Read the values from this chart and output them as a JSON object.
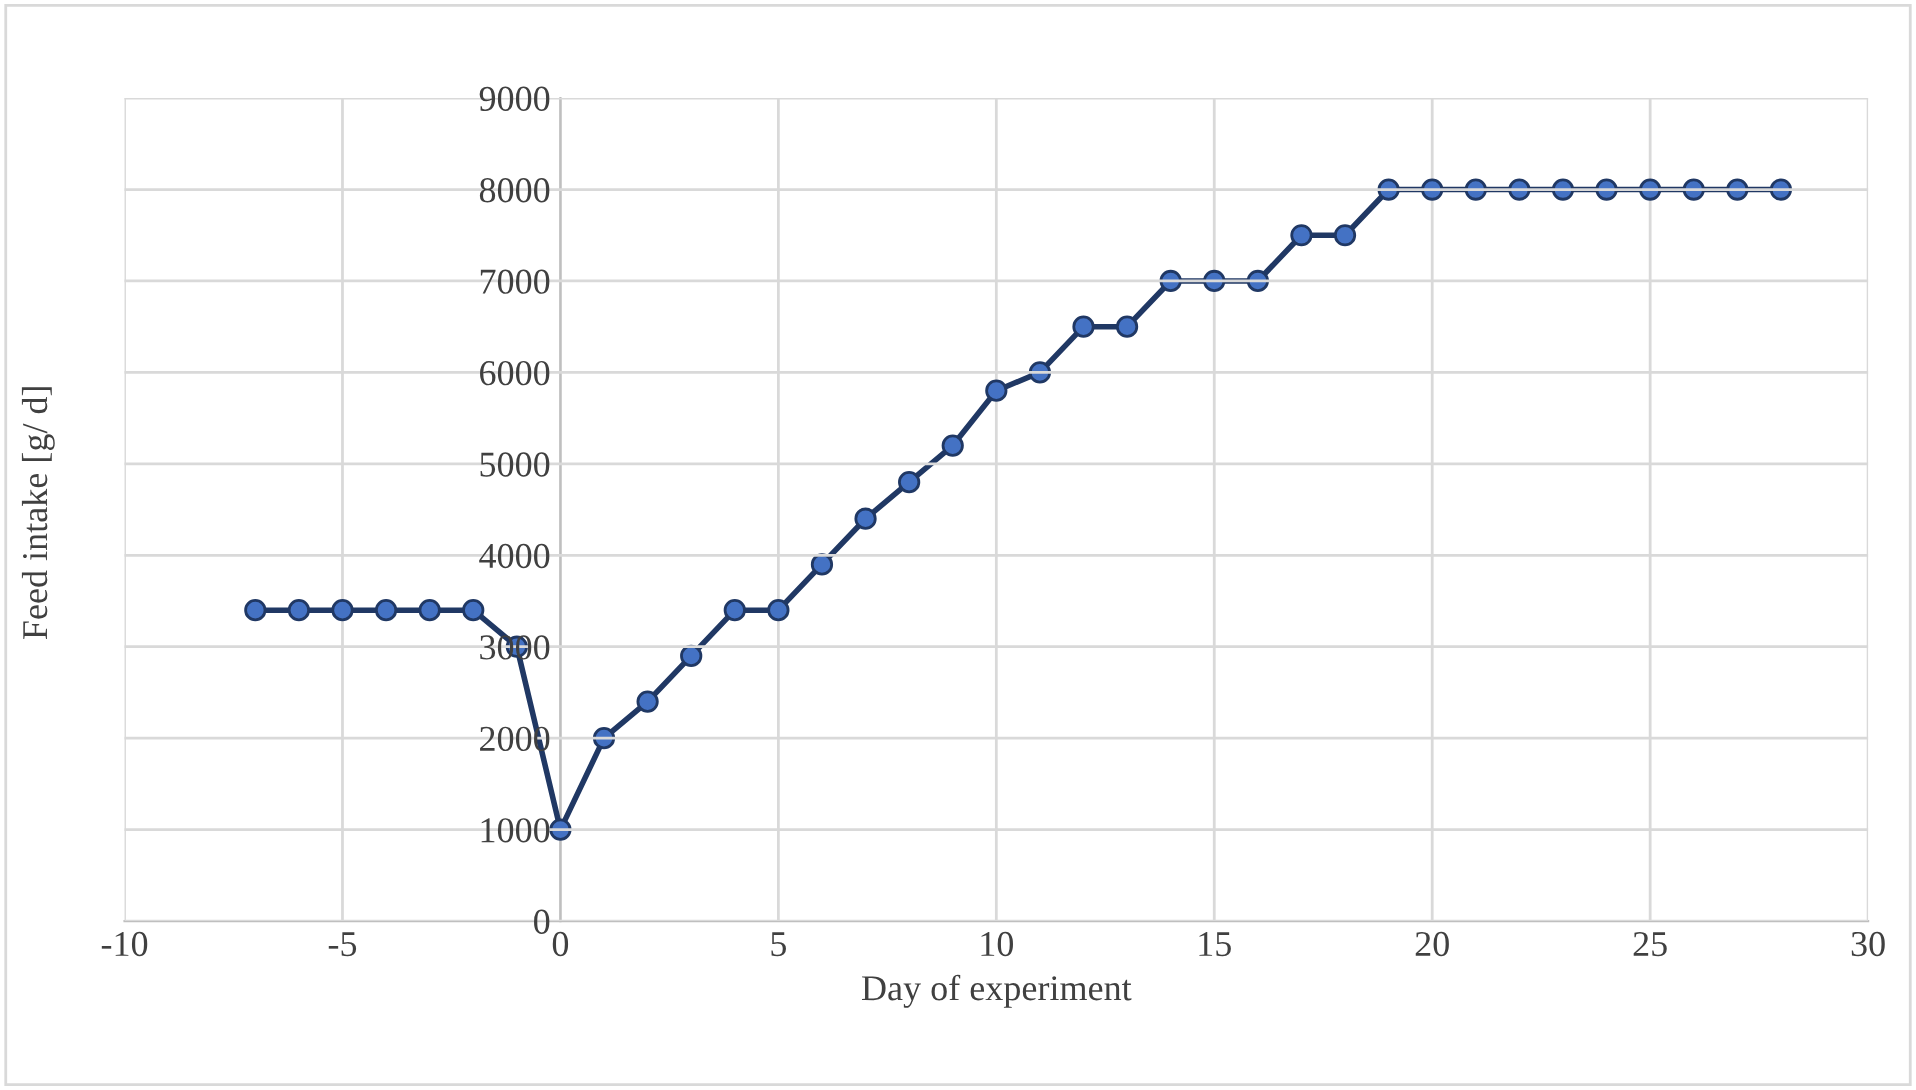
{
  "chart_data": {
    "type": "line",
    "xlabel": "Day of experiment",
    "ylabel": "Feed intake [g/ d]",
    "x": [
      -7,
      -6,
      -5,
      -4,
      -3,
      -2,
      -1,
      0,
      1,
      2,
      3,
      4,
      5,
      6,
      7,
      8,
      9,
      10,
      11,
      12,
      13,
      14,
      15,
      16,
      17,
      18,
      19,
      20,
      21,
      22,
      23,
      24,
      25,
      26,
      27,
      28
    ],
    "series": [
      {
        "color": "#203864",
        "values": [
          3400,
          3400,
          3400,
          3400,
          3400,
          3400,
          3000,
          1000,
          2000,
          2400,
          2900,
          3400,
          3400,
          3900,
          4400,
          4800,
          5200,
          5800,
          6000,
          6500,
          6500,
          7000,
          7000,
          7000,
          7500,
          7500,
          8000,
          8000,
          8000,
          8000,
          8000,
          8000,
          8000,
          8000,
          8000,
          8000
        ]
      }
    ],
    "xlim": [
      -10,
      30
    ],
    "xticks": [
      -10,
      -5,
      0,
      5,
      10,
      15,
      20,
      25,
      30
    ],
    "ylim": [
      0,
      9000
    ],
    "yticks": [
      0,
      1000,
      2000,
      3000,
      4000,
      5000,
      6000,
      7000,
      8000,
      9000
    ],
    "grid": true,
    "marker": "circle",
    "line_style": "solid"
  }
}
